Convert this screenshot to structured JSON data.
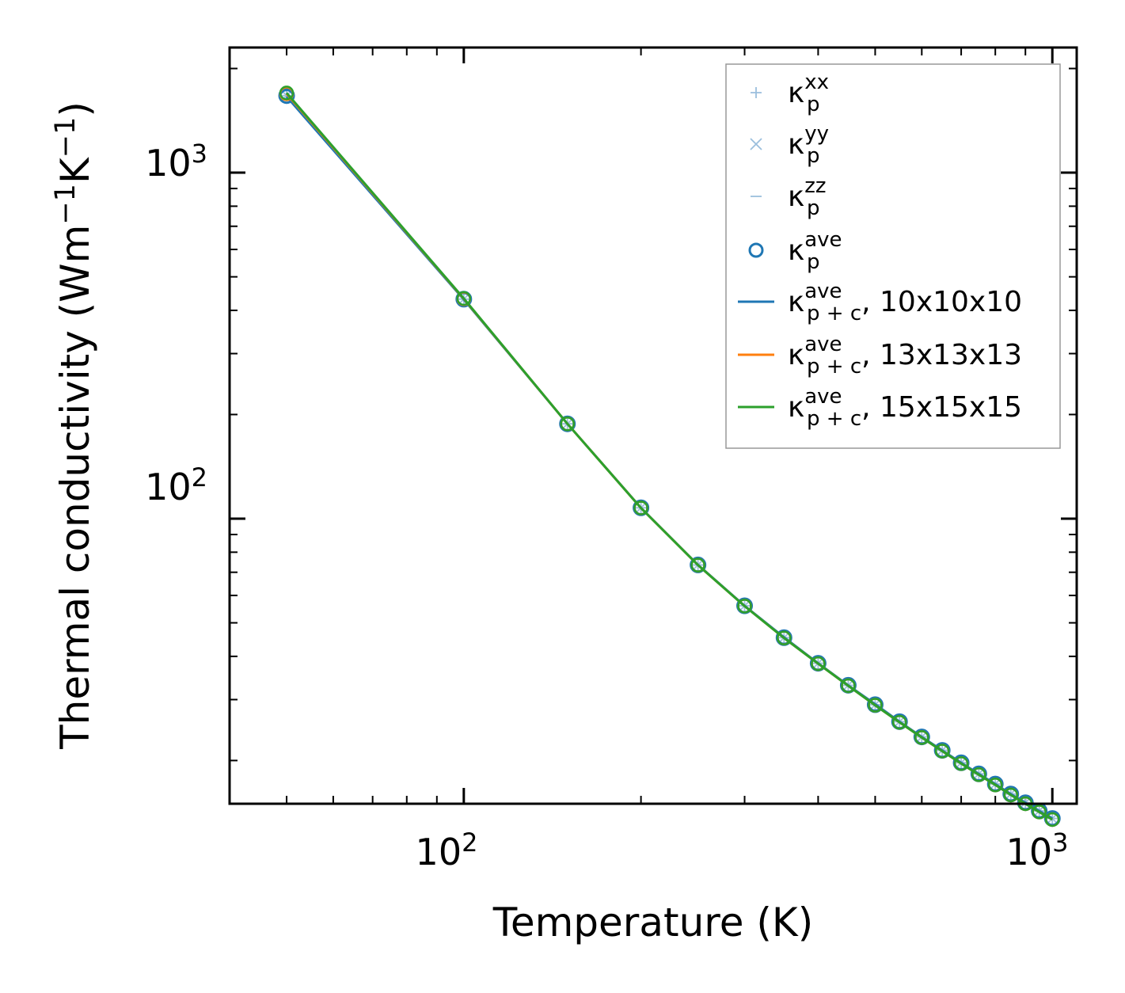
{
  "chart_data": {
    "type": "line",
    "xscale": "log",
    "yscale": "log",
    "xlabel": "Temperature (K)",
    "ylabel": {
      "base": "Thermal conductivity (Wm",
      "sup1": "−1",
      "mid": "K",
      "sup2": "−1",
      "end": ")"
    },
    "xlim": [
      40,
      1100
    ],
    "ylim": [
      15,
      2300
    ],
    "xticks": [
      {
        "base": "10",
        "exp": "2",
        "value": 100
      },
      {
        "base": "10",
        "exp": "3",
        "value": 1000
      }
    ],
    "yticks": [
      {
        "base": "10",
        "exp": "2",
        "value": 100
      },
      {
        "base": "10",
        "exp": "3",
        "value": 1000
      }
    ],
    "x": [
      50,
      100,
      150,
      200,
      250,
      300,
      350,
      400,
      450,
      500,
      550,
      600,
      650,
      700,
      750,
      800,
      850,
      900,
      950,
      1000
    ],
    "series": [
      {
        "name": "k_p^xx",
        "label": {
          "sym": "κ",
          "sup": "xx",
          "sub": "p",
          "suffix": ""
        },
        "kind": "marker",
        "marker": "plus",
        "color": "#9bbfdd",
        "values": [
          1670,
          431,
          188,
          107.5,
          73.5,
          56.0,
          45.3,
          38.2,
          33.0,
          29.0,
          25.9,
          23.4,
          21.4,
          19.7,
          18.3,
          17.1,
          16.0,
          15.1,
          14.3,
          13.6
        ]
      },
      {
        "name": "k_p^yy",
        "label": {
          "sym": "κ",
          "sup": "yy",
          "sub": "p",
          "suffix": ""
        },
        "kind": "marker",
        "marker": "cross",
        "color": "#9bbfdd",
        "values": [
          1670,
          431,
          188,
          107.5,
          73.5,
          56.0,
          45.3,
          38.2,
          33.0,
          29.0,
          25.9,
          23.4,
          21.4,
          19.7,
          18.3,
          17.1,
          16.0,
          15.1,
          14.3,
          13.6
        ]
      },
      {
        "name": "k_p^zz",
        "label": {
          "sym": "κ",
          "sup": "zz",
          "sub": "p",
          "suffix": ""
        },
        "kind": "marker",
        "marker": "hline",
        "color": "#9bbfdd",
        "values": [
          1670,
          431,
          188,
          107.5,
          73.5,
          56.0,
          45.3,
          38.2,
          33.0,
          29.0,
          25.9,
          23.4,
          21.4,
          19.7,
          18.3,
          17.1,
          16.0,
          15.1,
          14.3,
          13.6
        ]
      },
      {
        "name": "k_p^ave",
        "label": {
          "sym": "κ",
          "sup": "ave",
          "sub": "p",
          "suffix": ""
        },
        "kind": "marker",
        "marker": "circle",
        "color": "#1f77b4",
        "values": [
          1670,
          431,
          188,
          107.5,
          73.5,
          56.0,
          45.3,
          38.2,
          33.0,
          29.0,
          25.9,
          23.4,
          21.4,
          19.7,
          18.3,
          17.1,
          16.0,
          15.1,
          14.3,
          13.6
        ]
      },
      {
        "name": "k_p+c^ave 10x10x10",
        "label": {
          "sym": "κ",
          "sup": "ave",
          "sub": "p + c",
          "suffix": ", 10x10x10"
        },
        "kind": "line",
        "color": "#1f77b4",
        "values": [
          1660,
          430,
          188,
          107.5,
          73.5,
          56.0,
          45.4,
          38.2,
          33.0,
          29.1,
          25.9,
          23.4,
          21.4,
          19.7,
          18.3,
          17.1,
          16.0,
          15.1,
          14.3,
          13.6
        ]
      },
      {
        "name": "k_p+c^ave 13x13x13",
        "label": {
          "sym": "κ",
          "sup": "ave",
          "sub": "p + c",
          "suffix": ", 13x13x13"
        },
        "kind": "line",
        "color": "#ff7f0e",
        "values": [
          1690,
          432,
          188,
          107.4,
          73.4,
          55.9,
          45.2,
          38.1,
          32.9,
          28.9,
          25.8,
          23.3,
          21.3,
          19.6,
          18.2,
          17.0,
          15.9,
          15.0,
          14.2,
          13.5
        ]
      },
      {
        "name": "k_p+c^ave 15x15x15",
        "label": {
          "sym": "κ",
          "sup": "ave",
          "sub": "p + c",
          "suffix": ", 15x15x15"
        },
        "kind": "line",
        "color": "#2ca02c",
        "values": [
          1700,
          433,
          188,
          107.4,
          73.4,
          55.9,
          45.2,
          38.1,
          32.9,
          28.9,
          25.8,
          23.3,
          21.3,
          19.6,
          18.2,
          17.0,
          15.9,
          15.0,
          14.2,
          13.5
        ]
      }
    ],
    "legend_position": "top-right",
    "grid": false
  }
}
